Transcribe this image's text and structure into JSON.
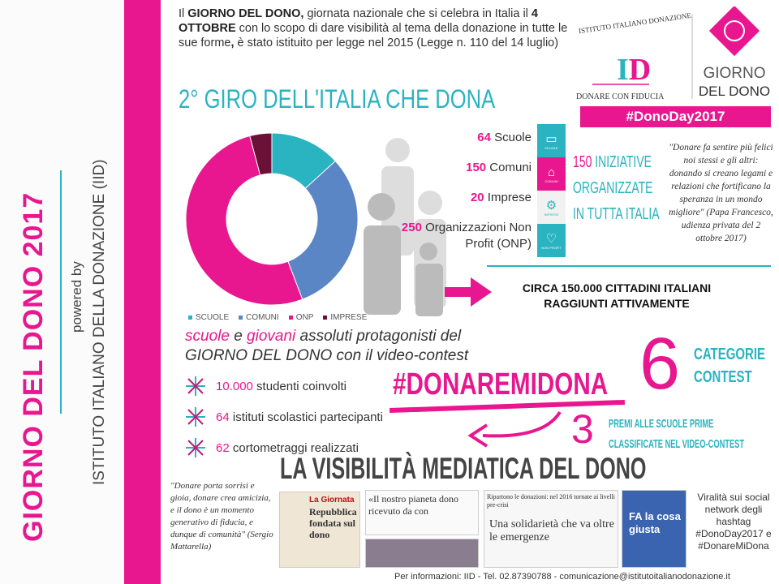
{
  "sidebar": {
    "title": "GIORNO DEL DONO 2017",
    "powered": "powered by",
    "org": "ISTITUTO ITALIANO DELLA DONAZIONE (IID)"
  },
  "intro": {
    "p1": "Il ",
    "b1": "GIORNO DEL DONO,",
    "p2": " giornata nazionale che si celebra in Italia il ",
    "b2": "4 OTTOBRE",
    "p3": " con lo scopo di dare visibilità al tema della donazione in tutte le sue forme",
    "b3": ",",
    "p4": " è stato istituito per legge nel 2015 (Legge n. 110 del 14 luglio)"
  },
  "title": "2° GIRO DELL'ITALIA CHE DONA",
  "logo": {
    "arc": "ISTITUTO ITALIANO DONAZIONE",
    "mono": "ID",
    "tagline": "DONARE CON FIDUCIA",
    "giorno": "GIORNO",
    "deldono": "DEL DONO",
    "hashtag": "#DonoDay2017"
  },
  "colors": {
    "pink": "#e8168f",
    "teal": "#2ab3c0",
    "blue": "#5b86c5",
    "maroon": "#6b1036"
  },
  "chart_data": {
    "type": "pie",
    "donut": true,
    "categories": [
      "SCUOLE",
      "COMUNI",
      "ONP",
      "IMPRESE"
    ],
    "values": [
      64,
      150,
      250,
      20
    ],
    "colors": [
      "#2ab3c0",
      "#5b86c5",
      "#e8168f",
      "#6b1036"
    ],
    "legend": "bottom"
  },
  "stats": [
    {
      "n": "64",
      "t": " Scuole",
      "icon": "book-icon",
      "label": "SCUOLE"
    },
    {
      "n": "150",
      "t": " Comuni",
      "icon": "town-hall-icon",
      "label": "COMUNI"
    },
    {
      "n": "20",
      "t": " Imprese",
      "icon": "gears-icon",
      "label": "IMPRESE"
    },
    {
      "n": "250",
      "t": " Organizzazioni Non Profit (ONP)",
      "icon": "heart-icon",
      "label": "NON PROFIT"
    }
  ],
  "icon_brand": "DONODAY",
  "iniziative": {
    "n": "150",
    "l1": " INIZIATIVE",
    "l2": "ORGANIZZATE",
    "l3": "IN TUTTA ITALIA"
  },
  "papa_quote": "\"Donare fa sentire più felici noi stessi e gli altri: donando si creano legami e relazioni che fortificano la speranza in un mondo migliore\" (Papa Francesco, udienza privata del 2 ottobre 2017)",
  "circa": {
    "l1": "CIRCA 150.000 CITTADINI ITALIANI",
    "l2": "RAGGIUNTI ATTIVAMENTE"
  },
  "contest": {
    "w1": "scuole",
    "w2": " e ",
    "w3": "giovani",
    "w4": " assoluti protagonisti del",
    "l2": "GIORNO DEL DONO con il video-contest"
  },
  "bullets": [
    {
      "n": "10.000",
      "t": " studenti coinvolti"
    },
    {
      "n": "64",
      "t": " istituti scolastici partecipanti"
    },
    {
      "n": "62",
      "t": " cortometraggi realizzati"
    }
  ],
  "hashtag_contest": "#DONAREMIDONA",
  "categorie": {
    "n": "6",
    "l1": "CATEGORIE",
    "l2": "CONTEST"
  },
  "premi": {
    "n": "3",
    "l1": "PREMI ALLE SCUOLE PRIME",
    "l2": "CLASSIFICATE NEL VIDEO-CONTEST"
  },
  "visibility": "LA VISIBILITÀ MEDIATICA DEL DONO",
  "mattarella_quote": "\"Donare porta sorrisi e gioia, donare crea amicizia, e il dono è un momento generativo di fiducia, e dunque di comunità\" (Sergio Mattarella)",
  "media": {
    "a_head": "La Giornata",
    "a_title": "Repubblica fondata sul dono",
    "b_title": "«Il nostro pianeta dono ricevuto da con",
    "c_head": "Ripartono le donazioni: nel 2016 tornate ai livelli pre-crisi",
    "c_title": "Una solidarietà che va oltre le emergenze",
    "d_title": "FA la cosa giusta"
  },
  "viral": "Viralità sui social network degli hashtag #DonoDay2017 e #DonareMiDona",
  "footer": "Per informazioni: IID - Tel. 02.87390788 - comunicazione@istitutoitalianodonazione.it"
}
